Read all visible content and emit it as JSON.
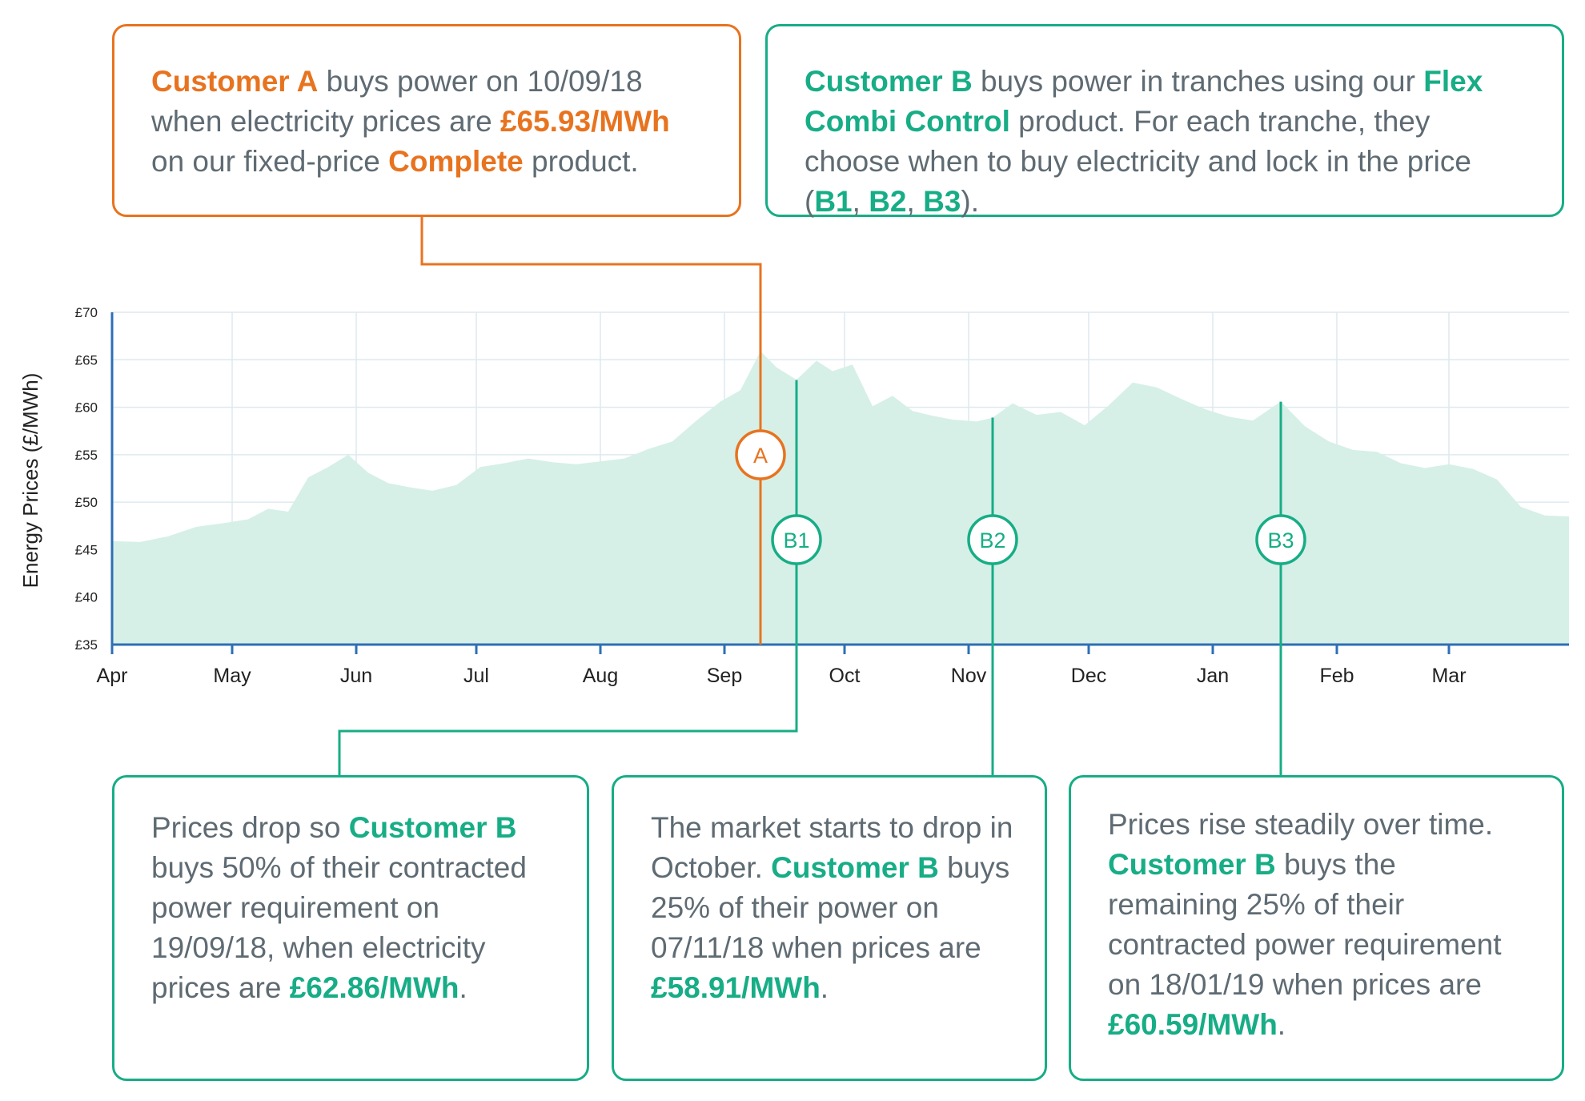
{
  "boxes": {
    "a": [
      {
        "t": "Customer A",
        "s": "o"
      },
      {
        "t": " buys power on 10/09/18 when electricity prices are "
      },
      {
        "t": "£65.93/MWh",
        "s": "o"
      },
      {
        "t": " on our fixed-price "
      },
      {
        "t": "Complete",
        "s": "o"
      },
      {
        "t": " product."
      }
    ],
    "b": [
      {
        "t": "Customer B",
        "s": "g"
      },
      {
        "t": " buys power in tranches using our "
      },
      {
        "t": "Flex Combi Control",
        "s": "g"
      },
      {
        "t": " product. For each tranche, they choose when to buy electricity and lock in the price ("
      },
      {
        "t": "B1",
        "s": "g"
      },
      {
        "t": ", "
      },
      {
        "t": "B2",
        "s": "g"
      },
      {
        "t": ", "
      },
      {
        "t": "B3",
        "s": "g"
      },
      {
        "t": ")."
      }
    ],
    "b1": [
      {
        "t": "Prices drop so "
      },
      {
        "t": "Customer B",
        "s": "g"
      },
      {
        "t": " buys 50% of their contracted power requirement on 19/09/18, when electricity prices are "
      },
      {
        "t": "£62.86/MWh",
        "s": "g"
      },
      {
        "t": "."
      }
    ],
    "b2": [
      {
        "t": "The market starts to drop in October. "
      },
      {
        "t": "Customer B",
        "s": "g"
      },
      {
        "t": " buys 25% of their power on 07/11/18 when prices are "
      },
      {
        "t": "£58.91/MWh",
        "s": "g"
      },
      {
        "t": "."
      }
    ],
    "b3": [
      {
        "t": "Prices rise steadily over time. "
      },
      {
        "t": "Customer B",
        "s": "g"
      },
      {
        "t": " buys the remaining 25% of their contracted power requirement on 18/01/19 when prices are "
      },
      {
        "t": "£60.59/MWh",
        "s": "g"
      },
      {
        "t": "."
      }
    ]
  },
  "colors": {
    "orange": "#e8731f",
    "green": "#17ad86",
    "fill": "#d6f0e7",
    "axis": "#2e6fb5",
    "grid": "#dde9ef",
    "text": "#5f6b73"
  },
  "chart_data": {
    "type": "area",
    "ylabel": "Energy Prices (£/MWh)",
    "ylim": [
      35,
      70
    ],
    "yticks": [
      35,
      40,
      45,
      50,
      55,
      60,
      65,
      70
    ],
    "ytick_labels": [
      "£35",
      "£40",
      "£45",
      "£50",
      "£55",
      "£60",
      "£65",
      "£70"
    ],
    "x_start": "2018-04-01",
    "x_end": "2019-03-31",
    "month_ticks": [
      "2018-04-01",
      "2018-05-01",
      "2018-06-01",
      "2018-07-01",
      "2018-08-01",
      "2018-09-01",
      "2018-10-01",
      "2018-11-01",
      "2018-12-01",
      "2019-01-01",
      "2019-02-01",
      "2019-03-01"
    ],
    "month_labels": [
      "Apr",
      "May",
      "Jun",
      "Jul",
      "Aug",
      "Sep",
      "Oct",
      "Nov",
      "Dec",
      "Jan",
      "Feb",
      "Mar"
    ],
    "grid": true,
    "series": [
      {
        "x": [
          "2018-04-01",
          "2018-04-08",
          "2018-04-15",
          "2018-04-22",
          "2018-04-29",
          "2018-05-05",
          "2018-05-10",
          "2018-05-15",
          "2018-05-20",
          "2018-05-25",
          "2018-05-30",
          "2018-06-04",
          "2018-06-09",
          "2018-06-14",
          "2018-06-20",
          "2018-06-26",
          "2018-07-02",
          "2018-07-08",
          "2018-07-14",
          "2018-07-20",
          "2018-07-26",
          "2018-08-01",
          "2018-08-07",
          "2018-08-13",
          "2018-08-19",
          "2018-08-25",
          "2018-08-31",
          "2018-09-05",
          "2018-09-10",
          "2018-09-14",
          "2018-09-19",
          "2018-09-24",
          "2018-09-28",
          "2018-10-03",
          "2018-10-08",
          "2018-10-13",
          "2018-10-18",
          "2018-10-23",
          "2018-10-28",
          "2018-11-03",
          "2018-11-07",
          "2018-11-12",
          "2018-11-18",
          "2018-11-24",
          "2018-11-30",
          "2018-12-06",
          "2018-12-12",
          "2018-12-18",
          "2018-12-24",
          "2018-12-30",
          "2019-01-05",
          "2019-01-11",
          "2019-01-18",
          "2019-01-24",
          "2019-01-30",
          "2019-02-05",
          "2019-02-11",
          "2019-02-17",
          "2019-02-23",
          "2019-03-01",
          "2019-03-07",
          "2019-03-13",
          "2019-03-19",
          "2019-03-25",
          "2019-03-31"
        ],
        "y": [
          45.9,
          45.8,
          46.4,
          47.4,
          47.8,
          48.2,
          49.3,
          49.0,
          52.6,
          53.7,
          55.0,
          53.1,
          52.0,
          51.6,
          51.2,
          51.8,
          53.7,
          54.1,
          54.6,
          54.2,
          54.0,
          54.3,
          54.6,
          55.6,
          56.4,
          58.6,
          60.6,
          61.8,
          65.9,
          64.2,
          62.9,
          64.9,
          63.8,
          64.5,
          60.1,
          61.2,
          59.6,
          59.1,
          58.7,
          58.5,
          58.9,
          60.4,
          59.2,
          59.5,
          58.1,
          60.2,
          62.6,
          62.1,
          60.9,
          59.8,
          59.0,
          58.6,
          60.6,
          58.0,
          56.4,
          55.5,
          55.3,
          54.1,
          53.6,
          54.0,
          53.5,
          52.4,
          49.5,
          48.6,
          48.5
        ]
      }
    ],
    "annotations": [
      {
        "label": "A",
        "date": "2018-09-10",
        "price": 65.93,
        "color": "orange"
      },
      {
        "label": "B1",
        "date": "2018-09-19",
        "price": 62.86,
        "color": "green"
      },
      {
        "label": "B2",
        "date": "2018-11-07",
        "price": 58.91,
        "color": "green"
      },
      {
        "label": "B3",
        "date": "2019-01-18",
        "price": 60.59,
        "color": "green"
      }
    ]
  }
}
